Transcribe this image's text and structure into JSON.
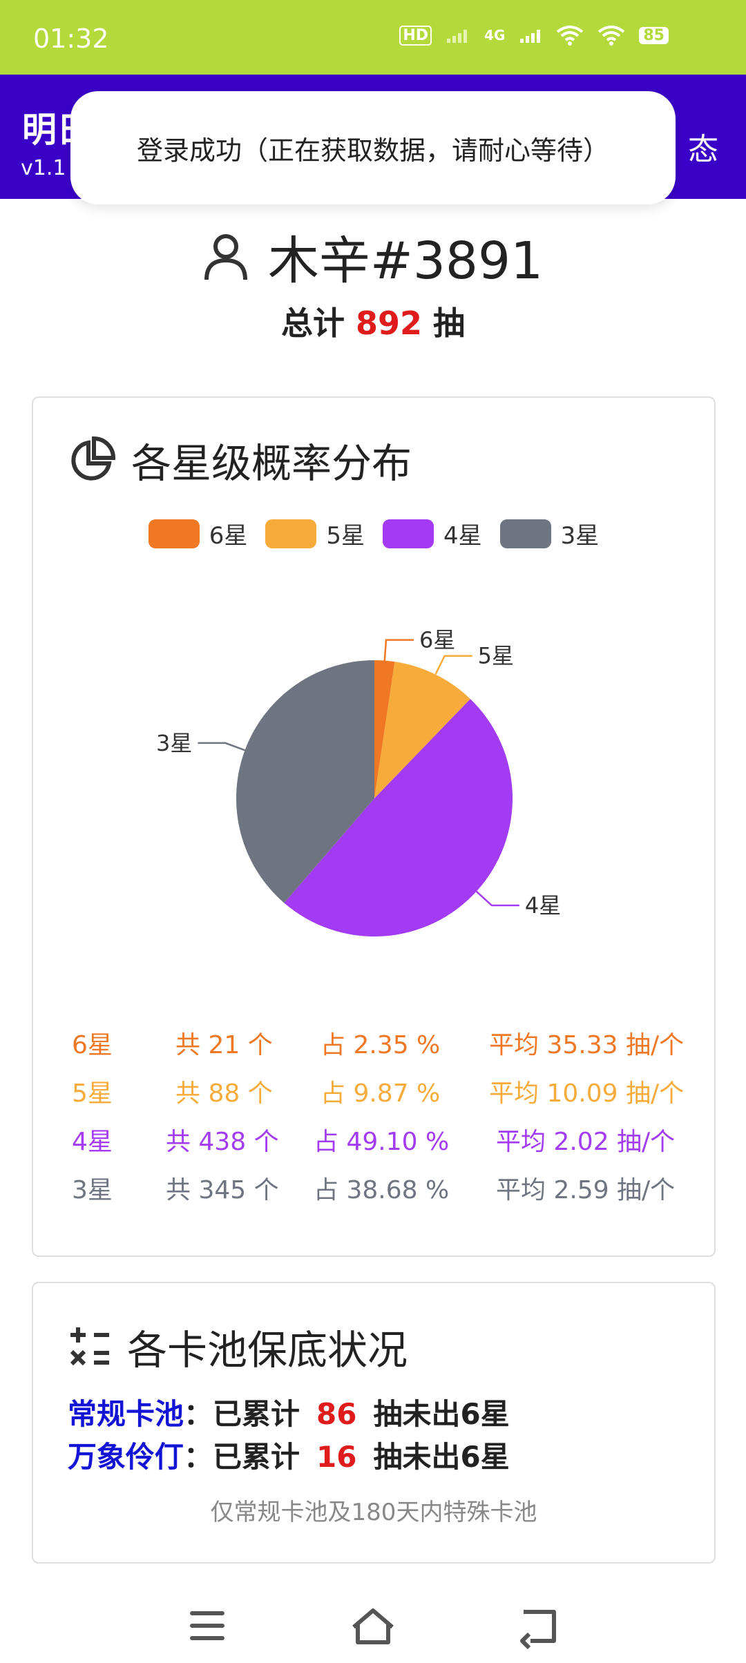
{
  "status_bar": {
    "time": "01:32",
    "network": "4G",
    "hd_label": "HD",
    "battery": "85",
    "battery_icon": "battery-icon",
    "wifi_icon": "wifi-icon",
    "signal_icon": "signal-icon"
  },
  "app_bar": {
    "title_visible": "明日",
    "version": "v1.1",
    "right_text_visible": "态",
    "color": "#3b00c8"
  },
  "toast": {
    "message": "登录成功（正在获取数据，请耐心等待）"
  },
  "user": {
    "icon": "person-icon",
    "name": "木辛#3891"
  },
  "total": {
    "prefix": "总计",
    "count": "892",
    "suffix": "抽"
  },
  "probability_card": {
    "icon": "pie-chart-icon",
    "title": "各星级概率分布",
    "stats": [
      {
        "star": "6星",
        "count_text": "共 21 个",
        "percent_text": "占 2.35 %",
        "avg_text": "平均 35.33 抽/个",
        "color": "#f07824"
      },
      {
        "star": "5星",
        "count_text": "共 88 个",
        "percent_text": "占 9.87 %",
        "avg_text": "平均 10.09 抽/个",
        "color": "#f7ab3a"
      },
      {
        "star": "4星",
        "count_text": "共 438 个",
        "percent_text": "占 49.10 %",
        "avg_text": "平均 2.02 抽/个",
        "color": "#a23bf3"
      },
      {
        "star": "3星",
        "count_text": "共 345 个",
        "percent_text": "占 38.68 %",
        "avg_text": "平均 2.59 抽/个",
        "color": "#6e7480"
      }
    ]
  },
  "chart_data": {
    "type": "pie",
    "title": "各星级概率分布",
    "legend_position": "top",
    "slices": [
      {
        "label": "6星",
        "value": 21,
        "color": "#f07824"
      },
      {
        "label": "5星",
        "value": 88,
        "color": "#f7ab3a"
      },
      {
        "label": "4星",
        "value": 438,
        "color": "#a23bf3"
      },
      {
        "label": "3星",
        "value": 345,
        "color": "#6e7480"
      }
    ]
  },
  "pity_card": {
    "icon": "calculator-icon",
    "title": "各卡池保底状况",
    "rows": [
      {
        "pool": "常规卡池",
        "colon": "：",
        "accum": "已累计",
        "count": "86",
        "tail": "抽未出6星"
      },
      {
        "pool": "万象伶仃",
        "colon": "：",
        "accum": "已累计",
        "count": "16",
        "tail": "抽未出6星"
      }
    ],
    "note": "仅常规卡池及180天内特殊卡池"
  },
  "nav": {
    "menu_icon": "menu-icon",
    "home_icon": "home-icon",
    "back_icon": "back-icon"
  }
}
